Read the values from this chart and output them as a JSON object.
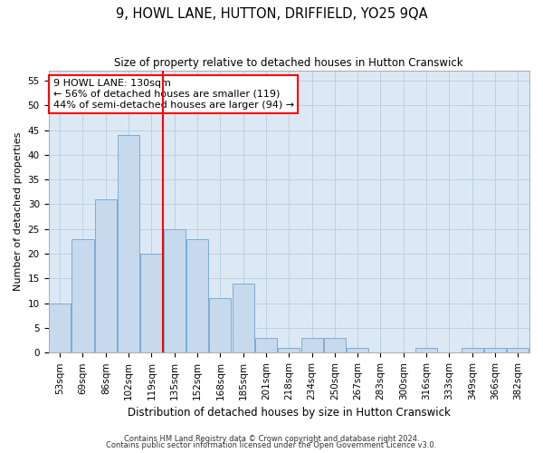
{
  "title": "9, HOWL LANE, HUTTON, DRIFFIELD, YO25 9QA",
  "subtitle": "Size of property relative to detached houses in Hutton Cranswick",
  "xlabel": "Distribution of detached houses by size in Hutton Cranswick",
  "ylabel": "Number of detached properties",
  "footnote1": "Contains HM Land Registry data © Crown copyright and database right 2024.",
  "footnote2": "Contains public sector information licensed under the Open Government Licence v3.0.",
  "bar_labels": [
    "53sqm",
    "69sqm",
    "86sqm",
    "102sqm",
    "119sqm",
    "135sqm",
    "152sqm",
    "168sqm",
    "185sqm",
    "201sqm",
    "218sqm",
    "234sqm",
    "250sqm",
    "267sqm",
    "283sqm",
    "300sqm",
    "316sqm",
    "333sqm",
    "349sqm",
    "366sqm",
    "382sqm"
  ],
  "bar_values": [
    10,
    23,
    31,
    44,
    20,
    25,
    23,
    11,
    14,
    3,
    1,
    3,
    3,
    1,
    0,
    0,
    1,
    0,
    1,
    1,
    1
  ],
  "bar_color": "#c7d9ed",
  "bar_edge_color": "#7bacd4",
  "vline_x": 4.5,
  "vline_color": "red",
  "annotation_line1": "9 HOWL LANE: 130sqm",
  "annotation_line2": "← 56% of detached houses are smaller (119)",
  "annotation_line3": "44% of semi-detached houses are larger (94) →",
  "ylim": [
    0,
    57
  ],
  "yticks": [
    0,
    5,
    10,
    15,
    20,
    25,
    30,
    35,
    40,
    45,
    50,
    55
  ],
  "background_color": "#ffffff",
  "axes_background": "#dce9f5",
  "grid_color": "#b8cce0",
  "title_fontsize": 10.5,
  "subtitle_fontsize": 8.5,
  "xlabel_fontsize": 8.5,
  "ylabel_fontsize": 8,
  "tick_fontsize": 7.5,
  "annotation_fontsize": 8,
  "footnote_fontsize": 6
}
